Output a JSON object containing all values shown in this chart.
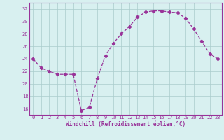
{
  "hours": [
    0,
    1,
    2,
    3,
    4,
    5,
    6,
    7,
    8,
    9,
    10,
    11,
    12,
    13,
    14,
    15,
    16,
    17,
    18,
    19,
    20,
    21,
    22,
    23
  ],
  "values": [
    24.0,
    22.5,
    22.0,
    21.5,
    21.5,
    21.5,
    15.7,
    16.2,
    20.8,
    24.5,
    26.5,
    28.0,
    29.2,
    30.7,
    31.5,
    31.7,
    31.7,
    31.5,
    31.4,
    30.5,
    28.8,
    26.8,
    24.8,
    24.0
  ],
  "line_color": "#993399",
  "marker": "D",
  "marker_size": 2.2,
  "bg_color": "#d8f0f0",
  "grid_color": "#aacccc",
  "xlabel": "Windchill (Refroidissement éolien,°C)",
  "ylim": [
    15.0,
    33.0
  ],
  "yticks": [
    16,
    18,
    20,
    22,
    24,
    26,
    28,
    30,
    32
  ],
  "xlim": [
    -0.5,
    23.5
  ],
  "xticks": [
    0,
    1,
    2,
    3,
    4,
    5,
    6,
    7,
    8,
    9,
    10,
    11,
    12,
    13,
    14,
    15,
    16,
    17,
    18,
    19,
    20,
    21,
    22,
    23
  ],
  "tick_fontsize": 5.0,
  "xlabel_fontsize": 5.5,
  "linewidth": 0.9
}
